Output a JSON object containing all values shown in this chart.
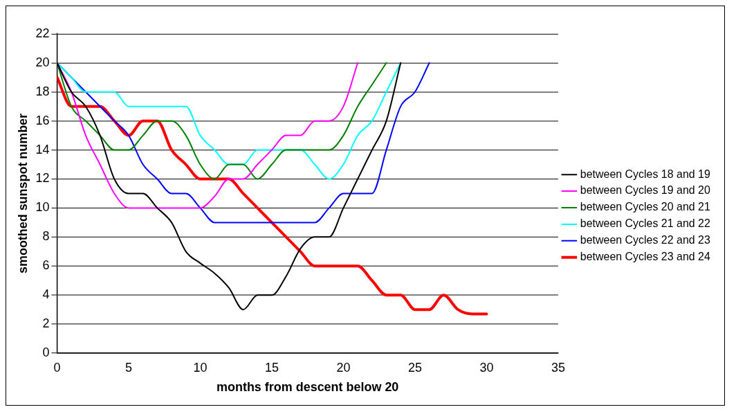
{
  "chart_data": {
    "type": "line",
    "xlabel": "months from descent below 20",
    "ylabel": "smoothed sunspot number",
    "xlim": [
      0,
      35
    ],
    "xticks": [
      0,
      5,
      10,
      15,
      20,
      25,
      30,
      35
    ],
    "ylim": [
      0,
      22
    ],
    "yticks": [
      0,
      2,
      4,
      6,
      8,
      10,
      12,
      14,
      16,
      18,
      20,
      22
    ],
    "grid": "y",
    "legend": "right",
    "marker": "none",
    "line_style": "solid",
    "series": [
      {
        "name": "between Cycles 18 and 19",
        "color": "#000000",
        "x": [
          0,
          1,
          2,
          3,
          4,
          5,
          6,
          7,
          8,
          9,
          10,
          11,
          12,
          13,
          14,
          15,
          16,
          17,
          18,
          19,
          20,
          21,
          22,
          23,
          24
        ],
        "values": [
          20,
          18,
          17,
          15,
          12,
          11,
          11,
          10,
          9,
          7,
          6.2,
          5.5,
          4.5,
          3,
          4,
          4,
          5.3,
          7.2,
          8,
          8,
          10,
          12,
          14,
          16,
          20
        ]
      },
      {
        "name": "between Cycles 19 and 20",
        "color": "#ff00ff",
        "x": [
          0,
          1,
          2,
          3,
          4,
          5,
          6,
          7,
          8,
          9,
          10,
          11,
          12,
          13,
          14,
          15,
          16,
          17,
          18,
          19,
          20,
          21
        ],
        "values": [
          20,
          18,
          15,
          13,
          11,
          10,
          10,
          10,
          10,
          10,
          10,
          10.8,
          12,
          12,
          13,
          14,
          15,
          15,
          16,
          16,
          17,
          20
        ]
      },
      {
        "name": "between Cycles 20 and 21",
        "color": "#008000",
        "x": [
          0,
          1,
          2,
          3,
          4,
          5,
          6,
          7,
          8,
          9,
          10,
          11,
          12,
          13,
          14,
          15,
          16,
          17,
          18,
          19,
          20,
          21,
          22,
          23
        ],
        "values": [
          20,
          17,
          16,
          15,
          14,
          14,
          15,
          16,
          16,
          15,
          13,
          12,
          13,
          13,
          12,
          13,
          14,
          14,
          14,
          14,
          15,
          17,
          18.5,
          20
        ]
      },
      {
        "name": "between Cycles 21 and 22",
        "color": "#00ffff",
        "x": [
          0,
          1,
          2,
          3,
          4,
          5,
          6,
          7,
          8,
          9,
          10,
          11,
          12,
          13,
          14,
          15,
          16,
          17,
          18,
          19,
          20,
          21,
          22,
          23,
          24
        ],
        "values": [
          20,
          19,
          18,
          18,
          18,
          17,
          17,
          17,
          17,
          17,
          15,
          14,
          13,
          13,
          14,
          14,
          14,
          14,
          13,
          12,
          13,
          15,
          16,
          18,
          20
        ]
      },
      {
        "name": "between Cycles 22 and 23",
        "color": "#0000ff",
        "x": [
          0,
          1,
          2,
          3,
          4,
          5,
          6,
          7,
          8,
          9,
          10,
          11,
          12,
          13,
          14,
          15,
          16,
          17,
          18,
          19,
          20,
          21,
          22,
          23,
          24,
          25,
          26
        ],
        "values": [
          20,
          19,
          18,
          17,
          16,
          15,
          13,
          12,
          11,
          11,
          10,
          9,
          9,
          9,
          9,
          9,
          9,
          9,
          9,
          10,
          11,
          11,
          11,
          14,
          17,
          18,
          20
        ]
      },
      {
        "name": "between Cycles 23 and 24",
        "color": "#ff0000",
        "x": [
          0,
          1,
          2,
          3,
          4,
          5,
          6,
          7,
          8,
          9,
          10,
          11,
          12,
          13,
          14,
          15,
          16,
          17,
          18,
          19,
          20,
          21,
          22,
          23,
          24,
          25,
          26,
          27,
          28,
          29,
          30
        ],
        "values": [
          19,
          17,
          17,
          17,
          16,
          15,
          16,
          16,
          14,
          13,
          12,
          12,
          12,
          11,
          10,
          9,
          8,
          7,
          6,
          6,
          6,
          6,
          5,
          4,
          4,
          3,
          3,
          4,
          3,
          2.7,
          2.7
        ]
      }
    ]
  }
}
